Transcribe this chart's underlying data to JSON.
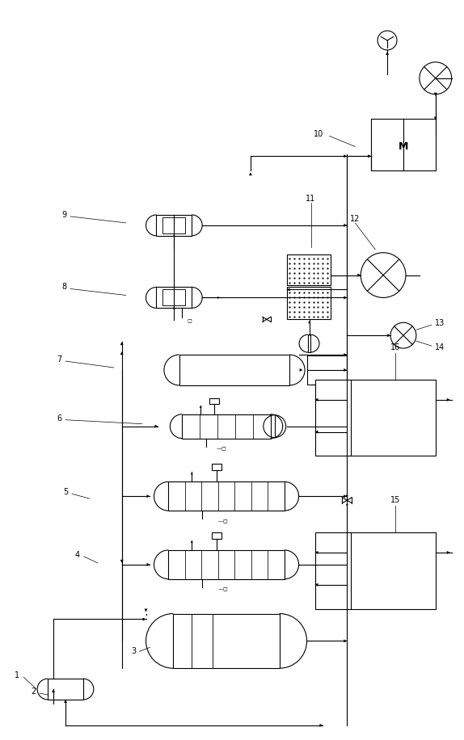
{
  "bg_color": "#ffffff",
  "line_color": "#000000",
  "fig_width": 5.74,
  "fig_height": 9.16,
  "dpi": 100
}
